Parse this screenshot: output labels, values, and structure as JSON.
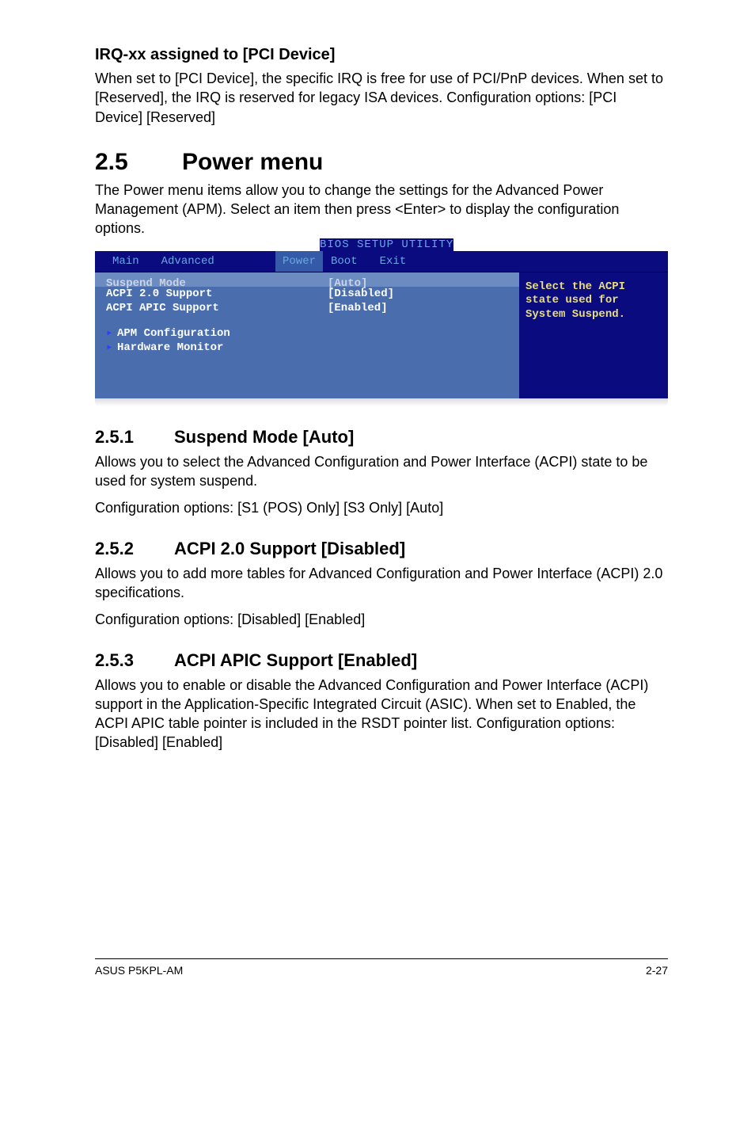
{
  "section_irq": {
    "heading": "IRQ-xx assigned to [PCI Device]",
    "body": "When set to [PCI Device], the specific IRQ is free for use of PCI/PnP devices. When set to [Reserved], the IRQ is reserved for legacy ISA devices. Configuration options: [PCI Device] [Reserved]"
  },
  "section_25": {
    "num": "2.5",
    "title": "Power menu",
    "body": "The Power menu items allow you to change the settings for the Advanced Power Management (APM). Select an item then press <Enter> to display the configuration options."
  },
  "bios": {
    "title": "BIOS SETUP UTILITY",
    "menu": {
      "items": [
        "Main",
        "Advanced",
        "Power",
        "Boot",
        "Exit"
      ],
      "active_index": 2
    },
    "colors": {
      "menu_bg": "#0b0b80",
      "menu_text": "#6aa7e2",
      "menu_active_bg": "#355aa8",
      "left_bg": "#4a6dad",
      "left_text": "#ffffff",
      "highlight_bg": "#6b8bc1",
      "highlight_text": "#c9d5ea",
      "right_bg": "#0b0b80",
      "right_text": "#eadf7a",
      "arrow_color": "#2f3dff"
    },
    "rows": [
      {
        "label": "Suspend Mode",
        "value": "[Auto]",
        "highlight": true
      },
      {
        "label": "ACPI 2.0 Support",
        "value": "[Disabled]",
        "highlight": false
      },
      {
        "label": "ACPI APIC Support",
        "value": "[Enabled]",
        "highlight": false
      }
    ],
    "submenus": [
      "APM Configuration",
      "Hardware Monitor"
    ],
    "help": "Select the ACPI state used for System Suspend."
  },
  "section_251": {
    "num": "2.5.1",
    "title": "Suspend Mode [Auto]",
    "body1": "Allows you to select the Advanced Configuration and Power Interface (ACPI) state to be used for system suspend.",
    "body2": "Configuration options: [S1 (POS) Only] [S3 Only] [Auto]"
  },
  "section_252": {
    "num": "2.5.2",
    "title": "ACPI 2.0 Support [Disabled]",
    "body1": "Allows you to add more tables for Advanced Configuration and Power Interface (ACPI) 2.0 specifications.",
    "body2": "Configuration options: [Disabled] [Enabled]"
  },
  "section_253": {
    "num": "2.5.3",
    "title": "ACPI APIC Support [Enabled]",
    "body": "Allows you to enable or disable the Advanced Configuration and Power Interface (ACPI) support in the Application-Specific Integrated Circuit (ASIC). When set to Enabled, the ACPI APIC table pointer is included in the RSDT pointer list. Configuration options: [Disabled] [Enabled]"
  },
  "footer": {
    "left": "ASUS P5KPL-AM",
    "right": "2-27"
  }
}
